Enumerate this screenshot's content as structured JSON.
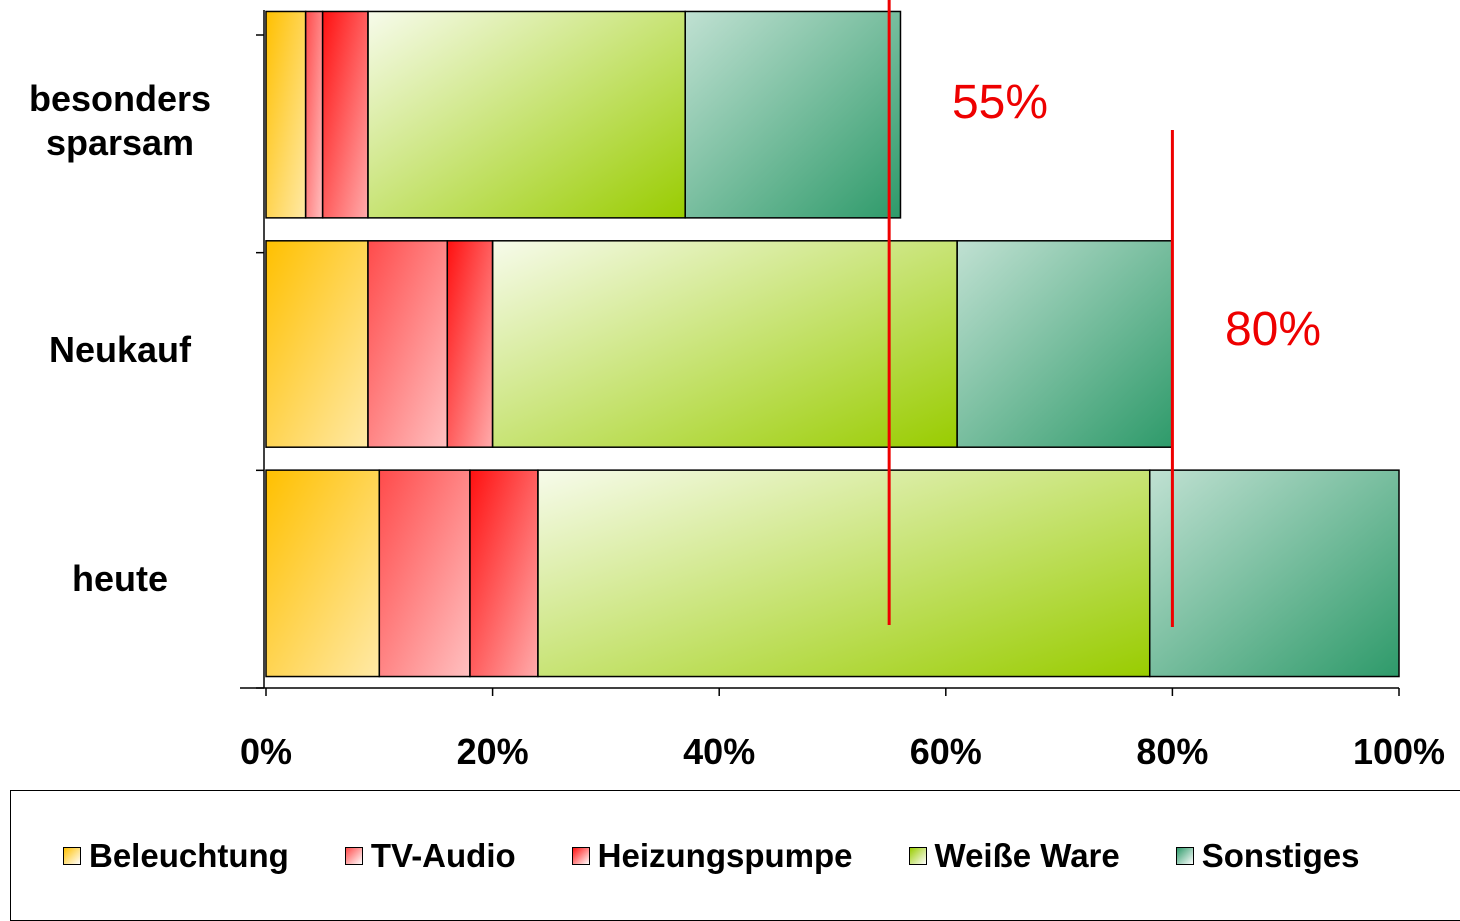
{
  "chart_data": {
    "type": "stacked_barh",
    "categories": [
      "besonders sparsam",
      "Neukauf",
      "heute"
    ],
    "series": [
      {
        "name": "Beleuchtung",
        "color": "#ffc000",
        "values": [
          3.5,
          9,
          10
        ]
      },
      {
        "name": "TV-Audio",
        "color": "#ff4b4b",
        "values": [
          1.5,
          7,
          8
        ]
      },
      {
        "name": "Heizungspumpe",
        "color": "#ff1010",
        "values": [
          4,
          4,
          6
        ]
      },
      {
        "name": "Weiße Ware",
        "color": "#99cc00",
        "values": [
          28,
          41,
          54
        ]
      },
      {
        "name": "Sonstiges",
        "color": "#2e9a6a",
        "values": [
          19,
          19,
          22
        ]
      }
    ],
    "xlim": [
      0,
      100
    ],
    "xticks": [
      {
        "value": 0,
        "label": "0%"
      },
      {
        "value": 20,
        "label": "20%"
      },
      {
        "value": 40,
        "label": "40%"
      },
      {
        "value": 60,
        "label": "60%"
      },
      {
        "value": 80,
        "label": "80%"
      },
      {
        "value": 100,
        "label": "100%"
      }
    ],
    "reference_lines": [
      {
        "value": 55,
        "label": "55%",
        "color": "#ee0000"
      },
      {
        "value": 80,
        "label": "80%",
        "color": "#ee0000"
      }
    ],
    "legend": "bottom"
  }
}
